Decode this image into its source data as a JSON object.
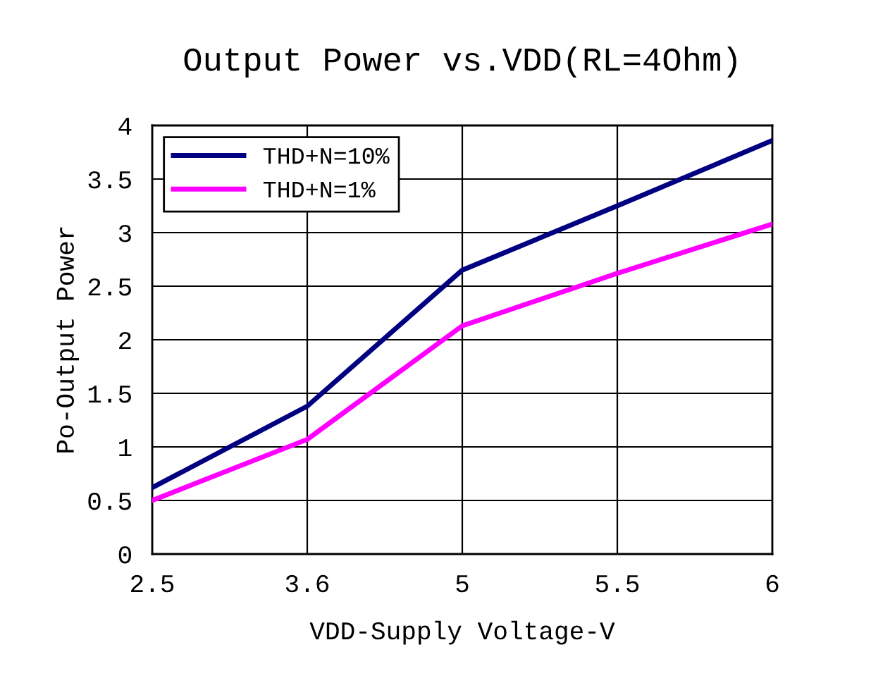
{
  "chart_data": {
    "type": "line",
    "title": "Output Power vs.VDD(RL=4Ohm)",
    "xlabel": "VDD-Supply Voltage-V",
    "ylabel": "Po-Output Power",
    "categories": [
      "2.5",
      "3.6",
      "5",
      "5.5",
      "6"
    ],
    "series": [
      {
        "name": "THD+N=10%",
        "color": "#000080",
        "values": [
          0.62,
          1.38,
          2.65,
          3.25,
          3.86
        ]
      },
      {
        "name": "THD+N=1%",
        "color": "#ff00ff",
        "values": [
          0.5,
          1.07,
          2.13,
          2.62,
          3.08
        ]
      }
    ],
    "ylim": [
      0,
      4
    ],
    "yticks": [
      0,
      0.5,
      1,
      1.5,
      2,
      2.5,
      3,
      3.5,
      4
    ],
    "grid": true,
    "legend": "top left",
    "marker": "none",
    "line_style": "solid"
  }
}
